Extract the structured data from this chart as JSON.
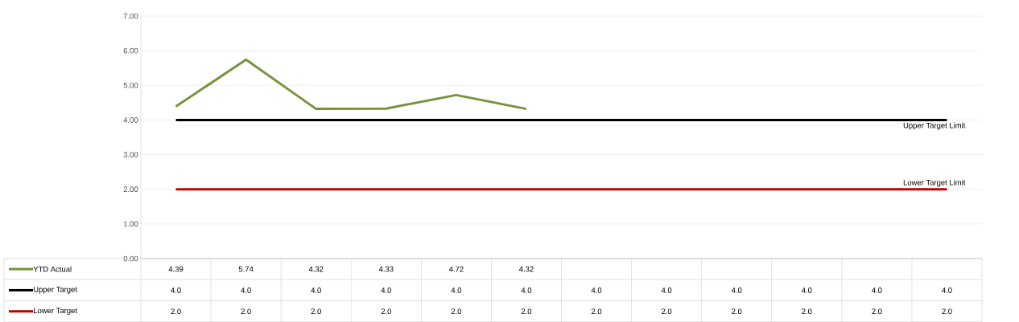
{
  "chart_data": {
    "type": "line",
    "categories": [
      null,
      null,
      null,
      null,
      null,
      null,
      null,
      null,
      null,
      null,
      null,
      null
    ],
    "series": [
      {
        "name": "YTD Actual",
        "color": "#77933c",
        "values": [
          4.39,
          5.74,
          4.32,
          4.33,
          4.72,
          4.32,
          null,
          null,
          null,
          null,
          null,
          null
        ],
        "value_labels": [
          "4.39",
          "5.74",
          "4.32",
          "4.33",
          "4.72",
          "4.32",
          null,
          null,
          null,
          null,
          null,
          null
        ]
      },
      {
        "name": "Upper Target",
        "color": "#000000",
        "values": [
          4,
          4,
          4,
          4,
          4,
          4,
          4,
          4,
          4,
          4,
          4,
          4
        ],
        "value_labels": [
          "4.0",
          "4.0",
          "4.0",
          "4.0",
          "4.0",
          "4.0",
          "4.0",
          "4.0",
          "4.0",
          "4.0",
          "4.0",
          "4.0"
        ]
      },
      {
        "name": "Lower Target",
        "color": "#c00000",
        "values": [
          2,
          2,
          2,
          2,
          2,
          2,
          2,
          2,
          2,
          2,
          2,
          2
        ],
        "value_labels": [
          "2.0",
          "2.0",
          "2.0",
          "2.0",
          "2.0",
          "2.0",
          "2.0",
          "2.0",
          "2.0",
          "2.0",
          "2.0",
          "2.0"
        ]
      }
    ],
    "ylim": [
      0,
      7
    ],
    "yticks": [
      {
        "value": 0,
        "label": "0.00"
      },
      {
        "value": 1,
        "label": "1.00"
      },
      {
        "value": 2,
        "label": "2.00"
      },
      {
        "value": 3,
        "label": "3.00"
      },
      {
        "value": 4,
        "label": "4.00"
      },
      {
        "value": 5,
        "label": "5.00"
      },
      {
        "value": 6,
        "label": "6.00"
      },
      {
        "value": 7,
        "label": "7.00"
      }
    ],
    "annotations": [
      {
        "text": "Upper Target Limit",
        "y": 4
      },
      {
        "text": "Lower Target Limit",
        "y": 2
      }
    ],
    "grid": "y",
    "legend": "bottom",
    "marker": "none",
    "line_style": "solid"
  }
}
